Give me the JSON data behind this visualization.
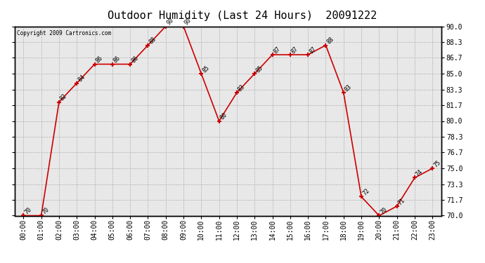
{
  "title": "Outdoor Humidity (Last 24 Hours)  20091222",
  "copyright": "Copyright 2009 Cartronics.com",
  "x_labels": [
    "00:00",
    "01:00",
    "02:00",
    "03:00",
    "04:00",
    "05:00",
    "06:00",
    "07:00",
    "08:00",
    "09:00",
    "10:00",
    "11:00",
    "12:00",
    "13:00",
    "14:00",
    "15:00",
    "16:00",
    "17:00",
    "18:00",
    "19:00",
    "20:00",
    "21:00",
    "22:00",
    "23:00"
  ],
  "x_values": [
    0,
    1,
    2,
    3,
    4,
    5,
    6,
    7,
    8,
    9,
    10,
    11,
    12,
    13,
    14,
    15,
    16,
    17,
    18,
    19,
    20,
    21,
    22,
    23
  ],
  "y_values": [
    70,
    70,
    82,
    84,
    86,
    86,
    86,
    88,
    90,
    90,
    85,
    80,
    83,
    85,
    87,
    87,
    87,
    88,
    83,
    72,
    70,
    71,
    74,
    75
  ],
  "point_labels": [
    "70",
    "70",
    "82",
    "84",
    "86",
    "86",
    "86",
    "88",
    "90",
    "90",
    "85",
    "80",
    "83",
    "85",
    "87",
    "87",
    "87",
    "88",
    "83",
    "72",
    "70",
    "71",
    "74",
    "75"
  ],
  "ylim": [
    70.0,
    90.0
  ],
  "yticks": [
    70.0,
    71.7,
    73.3,
    75.0,
    76.7,
    78.3,
    80.0,
    81.7,
    83.3,
    85.0,
    86.7,
    88.3,
    90.0
  ],
  "line_color": "#cc0000",
  "marker_color": "#cc0000",
  "bg_color": "#ffffff",
  "plot_bg_color": "#e8e8e8",
  "grid_color": "#b0b0b0",
  "title_fontsize": 11,
  "label_fontsize": 7,
  "point_label_fontsize": 6
}
